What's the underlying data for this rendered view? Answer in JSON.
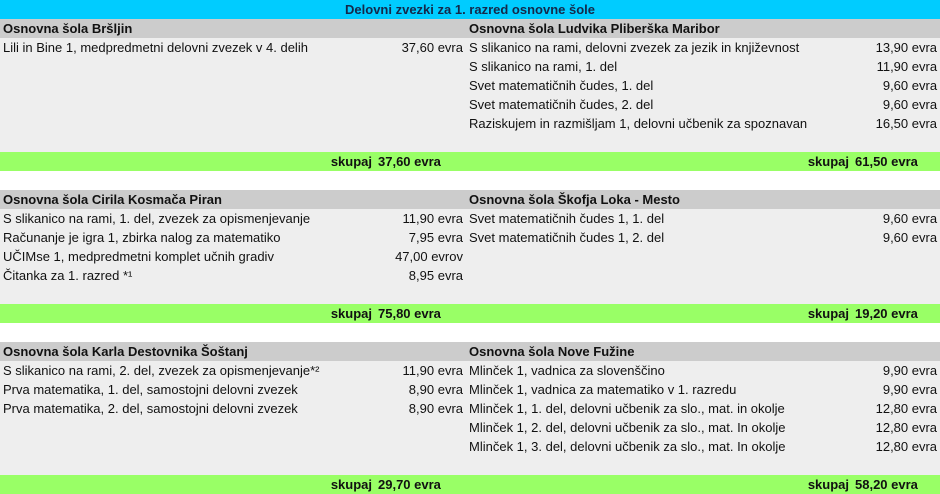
{
  "title": "Delovni zvezki za 1. razred osnovne šole",
  "colors": {
    "title_bg": "#00ccff",
    "header_bg": "#cccccc",
    "row_bg": "#eeeeee",
    "total_bg": "#99ff66"
  },
  "total_label": "skupaj",
  "sections": [
    {
      "rows": 6,
      "left": {
        "school": "Osnovna šola Bršljin",
        "items": [
          {
            "name": "Lili in Bine 1, medpredmetni delovni zvezek v 4. delih",
            "price": "37,60 evra"
          }
        ],
        "total": "37,60 evra"
      },
      "right": {
        "school": "Osnovna šola Ludvika Pliberška Maribor",
        "items": [
          {
            "name": "S slikanico na rami, delovni zvezek za jezik in književnost",
            "price": "13,90 evra"
          },
          {
            "name": "S slikanico na rami, 1. del",
            "price": "11,90 evra"
          },
          {
            "name": "Svet matematičnih čudes, 1. del",
            "price": "9,60 evra"
          },
          {
            "name": "Svet matematičnih čudes, 2. del",
            "price": "9,60 evra"
          },
          {
            "name": "Raziskujem in razmišljam 1, delovni učbenik za spoznavan",
            "price": "16,50 evra"
          }
        ],
        "total": "61,50 evra"
      }
    },
    {
      "rows": 5,
      "left": {
        "school": "Osnovna šola Cirila Kosmača Piran",
        "items": [
          {
            "name": "S slikanico na rami, 1. del, zvezek za opismenjevanje",
            "price": "11,90 evra"
          },
          {
            "name": "Računanje je igra 1, zbirka nalog za matematiko",
            "price": "7,95 evra"
          },
          {
            "name": "UČIMse 1, medpredmetni komplet učnih gradiv",
            "price": "47,00 evrov"
          },
          {
            "name": "Čitanka za 1. razred *¹",
            "price": "8,95 evra"
          }
        ],
        "total": "75,80 evra"
      },
      "right": {
        "school": "Osnovna šola Škofja Loka - Mesto",
        "items": [
          {
            "name": "Svet matematičnih čudes 1, 1. del",
            "price": "9,60 evra"
          },
          {
            "name": "Svet matematičnih čudes 1, 2. del",
            "price": "9,60 evra"
          }
        ],
        "total": "19,20 evra"
      }
    },
    {
      "rows": 6,
      "left": {
        "school": "Osnovna šola Karla Destovnika Šoštanj",
        "items": [
          {
            "name": "S slikanico na rami, 2. del, zvezek za opismenjevanje*²",
            "price": "11,90 evra"
          },
          {
            "name": "Prva matematika, 1. del, samostojni delovni zvezek",
            "price": "8,90 evra"
          },
          {
            "name": "Prva matematika, 2. del, samostojni delovni zvezek",
            "price": "8,90 evra"
          }
        ],
        "total": "29,70 evra"
      },
      "right": {
        "school": "Osnovna šola Nove Fužine",
        "items": [
          {
            "name": "Mlinček 1, vadnica za slovenščino",
            "price": "9,90 evra"
          },
          {
            "name": "Mlinček 1, vadnica za matematiko v 1. razredu",
            "price": "9,90 evra"
          },
          {
            "name": "Mlinček 1, 1. del, delovni učbenik za slo., mat. in okolje",
            "price": "12,80 evra"
          },
          {
            "name": "Mlinček 1, 2. del, delovni učbenik za slo., mat. In okolje",
            "price": "12,80 evra"
          },
          {
            "name": "Mlinček 1, 3. del, delovni učbenik za slo., mat. In okolje",
            "price": "12,80 evra"
          }
        ],
        "total": "58,20 evra"
      }
    }
  ]
}
